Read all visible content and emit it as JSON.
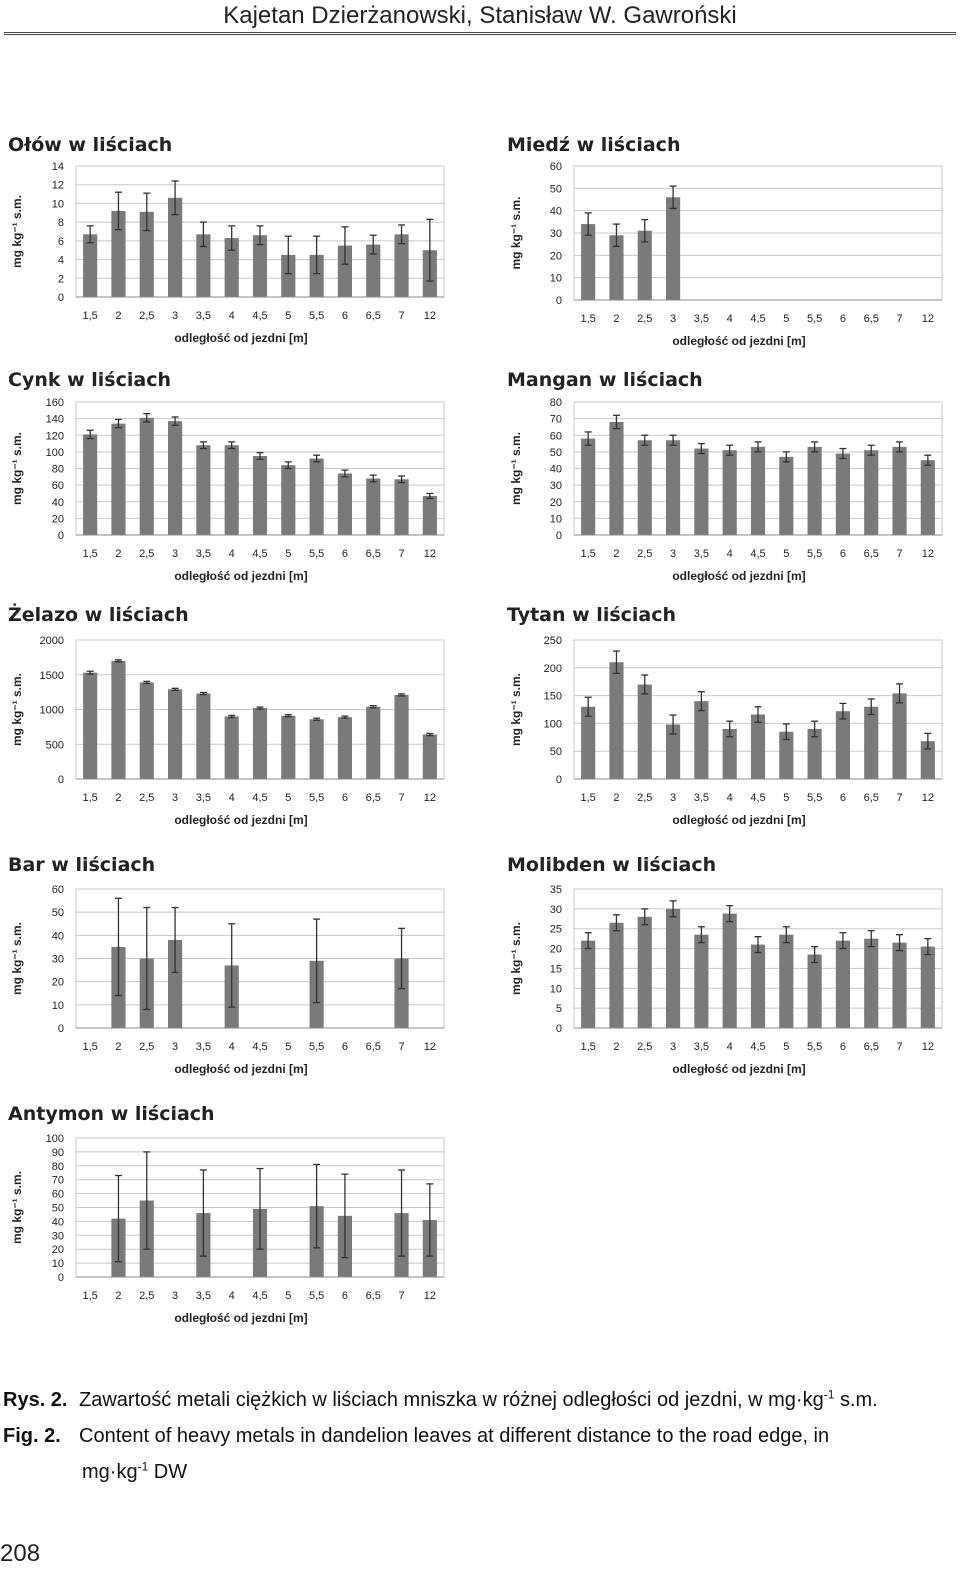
{
  "header": {
    "authors": "Kajetan Dzierżanowski, Stanisław W. Gawroński"
  },
  "chart_data": [
    {
      "type": "bar",
      "title": "Ołów w liściach",
      "xlabel": "odległość od jezdni [m]",
      "ylabel": "mg kg⁻¹ s.m.",
      "categories": [
        "1,5",
        "2",
        "2,5",
        "3",
        "3,5",
        "4",
        "4,5",
        "5",
        "5,5",
        "6",
        "6,5",
        "7",
        "12"
      ],
      "values": [
        6.7,
        9.2,
        9.1,
        10.6,
        6.7,
        6.3,
        6.6,
        4.5,
        4.5,
        5.5,
        5.6,
        6.7,
        5.0
      ],
      "errors": [
        0.9,
        2.0,
        2.0,
        1.8,
        1.3,
        1.3,
        1.0,
        2.0,
        2.0,
        2.0,
        1.0,
        1.0,
        3.3
      ],
      "ylim": [
        0,
        14
      ],
      "yticks": [
        "0",
        "2",
        "4",
        "6",
        "8",
        "10",
        "12",
        "14"
      ],
      "grid": true
    },
    {
      "type": "bar",
      "title": "Miedź w liściach",
      "xlabel": "odległość od jezdni [m]",
      "ylabel": "mg kg⁻¹ s.m.",
      "categories": [
        "1,5",
        "2",
        "2,5",
        "3",
        "3,5",
        "4",
        "4,5",
        "5",
        "5,5",
        "6",
        "6,5",
        "7",
        "12"
      ],
      "values": [
        34,
        29,
        31,
        46,
        null,
        null,
        null,
        null,
        null,
        null,
        null,
        null,
        null
      ],
      "errors": [
        5,
        5,
        5,
        5,
        null,
        null,
        null,
        null,
        null,
        null,
        null,
        null,
        null
      ],
      "ylim": [
        0,
        60
      ],
      "yticks": [
        "0",
        "10",
        "20",
        "30",
        "40",
        "50",
        "60"
      ],
      "grid": true
    },
    {
      "type": "bar",
      "title": "Cynk w liściach",
      "xlabel": "odległość od jezdni [m]",
      "ylabel": "mg kg⁻¹ s.m.",
      "categories": [
        "1,5",
        "2",
        "2,5",
        "3",
        "3,5",
        "4",
        "4,5",
        "5",
        "5,5",
        "6",
        "6,5",
        "7",
        "12"
      ],
      "values": [
        121,
        134,
        141,
        137,
        108,
        108,
        95,
        84,
        92,
        74,
        68,
        67,
        47
      ],
      "errors": [
        5,
        5,
        5,
        5,
        4,
        4,
        4,
        4,
        4,
        4,
        4,
        4,
        3
      ],
      "ylim": [
        0,
        160
      ],
      "yticks": [
        "0",
        "20",
        "40",
        "60",
        "80",
        "100",
        "120",
        "140",
        "160"
      ],
      "grid": true
    },
    {
      "type": "bar",
      "title": "Mangan w liściach",
      "xlabel": "odległość od jezdni [m]",
      "ylabel": "mg kg⁻¹ s.m.",
      "categories": [
        "1,5",
        "2",
        "2,5",
        "3",
        "3,5",
        "4",
        "4,5",
        "5",
        "5,5",
        "6",
        "6,5",
        "7",
        "12"
      ],
      "values": [
        58,
        68,
        57,
        57,
        52,
        51,
        53,
        47,
        53,
        49,
        51,
        53,
        45
      ],
      "errors": [
        4,
        4,
        3,
        3,
        3,
        3,
        3,
        3,
        3,
        3,
        3,
        3,
        3
      ],
      "ylim": [
        0,
        80
      ],
      "yticks": [
        "0",
        "10",
        "20",
        "30",
        "40",
        "50",
        "60",
        "70",
        "80"
      ],
      "grid": true
    },
    {
      "type": "bar",
      "title": "Żelazo w liściach",
      "xlabel": "odległość od jezdni [m]",
      "ylabel": "mg kg⁻¹ s.m.",
      "categories": [
        "1,5",
        "2",
        "2,5",
        "3",
        "3,5",
        "4",
        "4,5",
        "5",
        "5,5",
        "6",
        "6,5",
        "7",
        "12"
      ],
      "values": [
        1530,
        1700,
        1390,
        1290,
        1230,
        900,
        1020,
        910,
        860,
        890,
        1040,
        1210,
        640
      ],
      "errors": [
        20,
        15,
        15,
        15,
        15,
        15,
        15,
        15,
        15,
        15,
        15,
        15,
        15
      ],
      "ylim": [
        0,
        2000
      ],
      "yticks": [
        "0",
        "500",
        "1000",
        "1500",
        "2000"
      ],
      "grid": true
    },
    {
      "type": "bar",
      "title": "Tytan w liściach",
      "xlabel": "odległość od jezdni [m]",
      "ylabel": "mg kg⁻¹ s.m.",
      "categories": [
        "1,5",
        "2",
        "2,5",
        "3",
        "3,5",
        "4",
        "4,5",
        "5",
        "5,5",
        "6",
        "6,5",
        "7",
        "12"
      ],
      "values": [
        130,
        210,
        170,
        98,
        140,
        90,
        116,
        85,
        90,
        122,
        130,
        154,
        68
      ],
      "errors": [
        17,
        20,
        17,
        17,
        17,
        14,
        14,
        14,
        14,
        14,
        14,
        17,
        14
      ],
      "ylim": [
        0,
        250
      ],
      "yticks": [
        "0",
        "50",
        "100",
        "150",
        "200",
        "250"
      ],
      "grid": true
    },
    {
      "type": "bar",
      "title": "Bar w liściach",
      "xlabel": "odległość od jezdni [m]",
      "ylabel": "mg kg⁻¹ s.m.",
      "categories": [
        "1,5",
        "2",
        "2,5",
        "3",
        "3,5",
        "4",
        "4,5",
        "5",
        "5,5",
        "6",
        "6,5",
        "7",
        "12"
      ],
      "values": [
        null,
        35,
        30,
        38,
        null,
        27,
        null,
        null,
        29,
        null,
        null,
        30,
        null
      ],
      "errors": [
        null,
        21,
        22,
        14,
        null,
        18,
        null,
        null,
        18,
        null,
        null,
        13,
        null
      ],
      "ylim": [
        0,
        60
      ],
      "yticks": [
        "0",
        "10",
        "20",
        "30",
        "40",
        "50",
        "60"
      ],
      "grid": true
    },
    {
      "type": "bar",
      "title": "Molibden w liściach",
      "xlabel": "odległość od jezdni [m]",
      "ylabel": "mg kg⁻¹ s.m.",
      "categories": [
        "1,5",
        "2",
        "2,5",
        "3",
        "3,5",
        "4",
        "4,5",
        "5",
        "5,5",
        "6",
        "6,5",
        "7",
        "12"
      ],
      "values": [
        22,
        26.5,
        28,
        30,
        23.5,
        28.8,
        21,
        23.5,
        18.5,
        22,
        22.5,
        21.5,
        20.5
      ],
      "errors": [
        2,
        2,
        2,
        2,
        2,
        2,
        2,
        2,
        2,
        2,
        2,
        2,
        2
      ],
      "ylim": [
        0,
        35
      ],
      "yticks": [
        "0",
        "5",
        "10",
        "15",
        "20",
        "25",
        "30",
        "35"
      ],
      "grid": true
    },
    {
      "type": "bar",
      "title": "Antymon w liściach",
      "xlabel": "odległość od jezdni [m]",
      "ylabel": "mg kg⁻¹ s.m.",
      "categories": [
        "1,5",
        "2",
        "2,5",
        "3",
        "3,5",
        "4",
        "4,5",
        "5",
        "5,5",
        "6",
        "6,5",
        "7",
        "12"
      ],
      "values": [
        null,
        42,
        55,
        null,
        46,
        null,
        49,
        null,
        51,
        44,
        null,
        46,
        41
      ],
      "errors": [
        null,
        31,
        35,
        null,
        31,
        null,
        29,
        null,
        30,
        30,
        null,
        31,
        26
      ],
      "ylim": [
        0,
        100
      ],
      "yticks": [
        "0",
        "10",
        "20",
        "30",
        "40",
        "50",
        "60",
        "70",
        "80",
        "90",
        "100"
      ],
      "grid": true
    }
  ],
  "caption": {
    "pl_label": "Rys. 2.",
    "pl_text": "Zawartość metali ciężkich w liściach mniszka w różnej odległości od jezdni, w mg·kg",
    "pl_sup": "-1",
    "pl_tail": " s.m.",
    "en_label": "Fig. 2.",
    "en_text": "Content of heavy metals in dandelion leaves at different distance to the road edge, in",
    "en_text2": "mg·kg",
    "en_sup": "-1",
    "en_tail": " DW"
  },
  "page_number": "208",
  "colors": {
    "bar": "#7a7a7a",
    "grid": "#c8c8c8",
    "axis": "#888888",
    "text": "#222222"
  }
}
